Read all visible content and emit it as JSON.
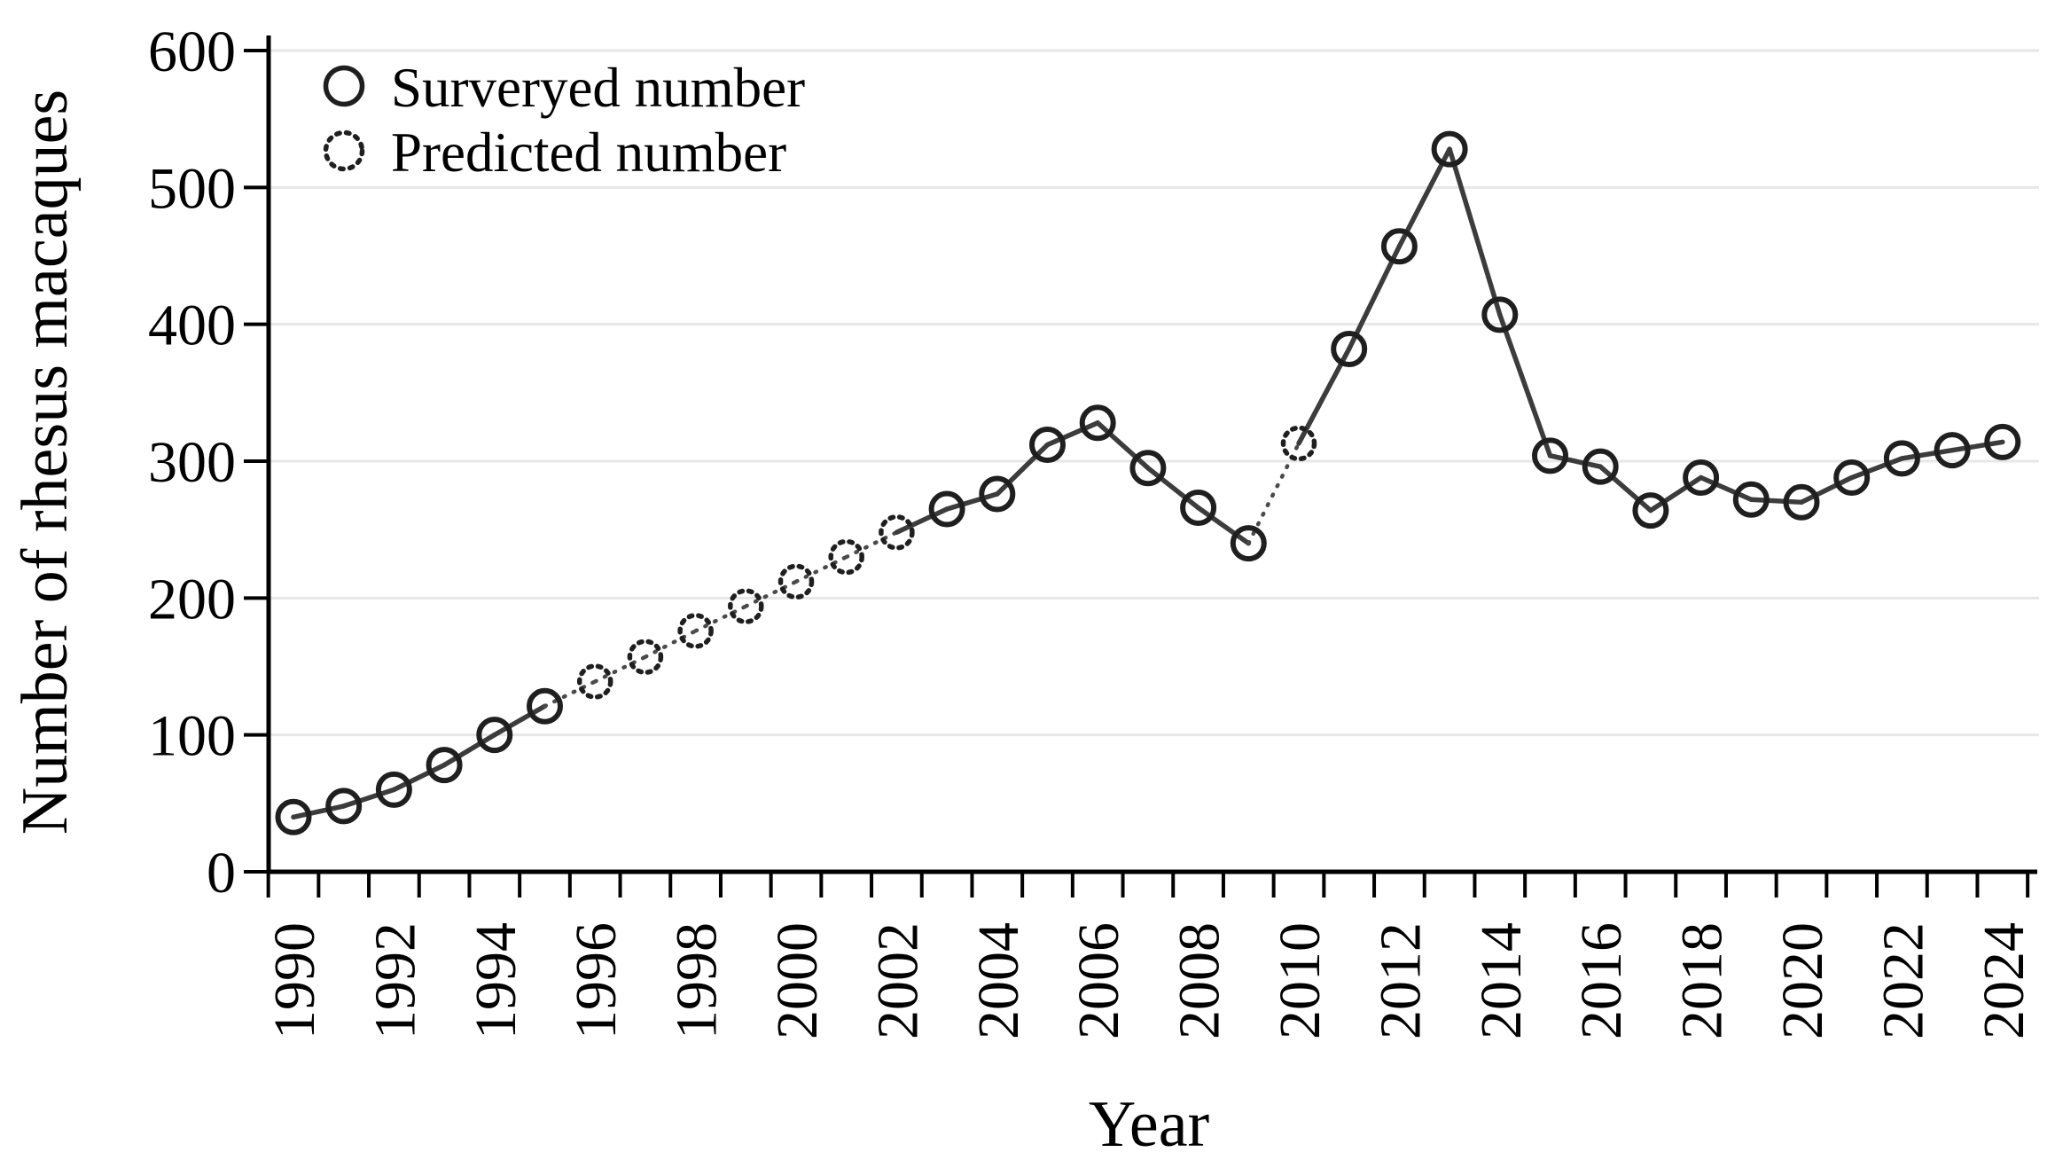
{
  "figure": {
    "background": "#ffffff"
  },
  "chart_data": {
    "type": "line",
    "title": "",
    "xlabel": "Year",
    "ylabel": "Number of rhesus macaques",
    "xlim": [
      1989.5,
      2024.5
    ],
    "ylim": [
      0,
      600
    ],
    "y_ticks": [
      0,
      100,
      200,
      300,
      400,
      500,
      600
    ],
    "x_tick_label_years": [
      1990,
      1992,
      1994,
      1996,
      1998,
      2000,
      2002,
      2004,
      2006,
      2008,
      2010,
      2012,
      2014,
      2016,
      2018,
      2020,
      2022,
      2024
    ],
    "grid": "horizontal-light",
    "legend": {
      "position": "top-left",
      "entries": [
        {
          "label": "Surveryed number",
          "marker": "open-circle-solid"
        },
        {
          "label": "Predicted number",
          "marker": "open-circle-dotted"
        }
      ]
    },
    "series": [
      {
        "name": "Number of rhesus macaques",
        "points": [
          {
            "year": 1990,
            "value": 40,
            "predicted": false
          },
          {
            "year": 1991,
            "value": 48,
            "predicted": false
          },
          {
            "year": 1992,
            "value": 60,
            "predicted": false
          },
          {
            "year": 1993,
            "value": 78,
            "predicted": false
          },
          {
            "year": 1994,
            "value": 100,
            "predicted": false
          },
          {
            "year": 1995,
            "value": 121,
            "predicted": false
          },
          {
            "year": 1996,
            "value": 139,
            "predicted": true
          },
          {
            "year": 1997,
            "value": 157,
            "predicted": true
          },
          {
            "year": 1998,
            "value": 176,
            "predicted": true
          },
          {
            "year": 1999,
            "value": 194,
            "predicted": true
          },
          {
            "year": 2000,
            "value": 212,
            "predicted": true
          },
          {
            "year": 2001,
            "value": 230,
            "predicted": true
          },
          {
            "year": 2002,
            "value": 248,
            "predicted": true
          },
          {
            "year": 2003,
            "value": 265,
            "predicted": false
          },
          {
            "year": 2004,
            "value": 276,
            "predicted": false
          },
          {
            "year": 2005,
            "value": 312,
            "predicted": false
          },
          {
            "year": 2006,
            "value": 328,
            "predicted": false
          },
          {
            "year": 2007,
            "value": 295,
            "predicted": false
          },
          {
            "year": 2008,
            "value": 266,
            "predicted": false
          },
          {
            "year": 2009,
            "value": 240,
            "predicted": false
          },
          {
            "year": 2010,
            "value": 313,
            "predicted": true
          },
          {
            "year": 2011,
            "value": 382,
            "predicted": false
          },
          {
            "year": 2012,
            "value": 457,
            "predicted": false
          },
          {
            "year": 2013,
            "value": 528,
            "predicted": false
          },
          {
            "year": 2014,
            "value": 407,
            "predicted": false
          },
          {
            "year": 2015,
            "value": 304,
            "predicted": false
          },
          {
            "year": 2016,
            "value": 296,
            "predicted": false
          },
          {
            "year": 2017,
            "value": 264,
            "predicted": false
          },
          {
            "year": 2018,
            "value": 288,
            "predicted": false
          },
          {
            "year": 2019,
            "value": 272,
            "predicted": false
          },
          {
            "year": 2020,
            "value": 270,
            "predicted": false
          },
          {
            "year": 2021,
            "value": 288,
            "predicted": false
          },
          {
            "year": 2022,
            "value": 302,
            "predicted": false
          },
          {
            "year": 2023,
            "value": 308,
            "predicted": false
          },
          {
            "year": 2024,
            "value": 314,
            "predicted": false
          }
        ]
      }
    ],
    "colors": {
      "line": "#3c3c3c",
      "marker": "#1f1f1f",
      "dotted_line": "#4a4a4a",
      "grid": "#e7e7e7",
      "axis": "#000000"
    }
  }
}
